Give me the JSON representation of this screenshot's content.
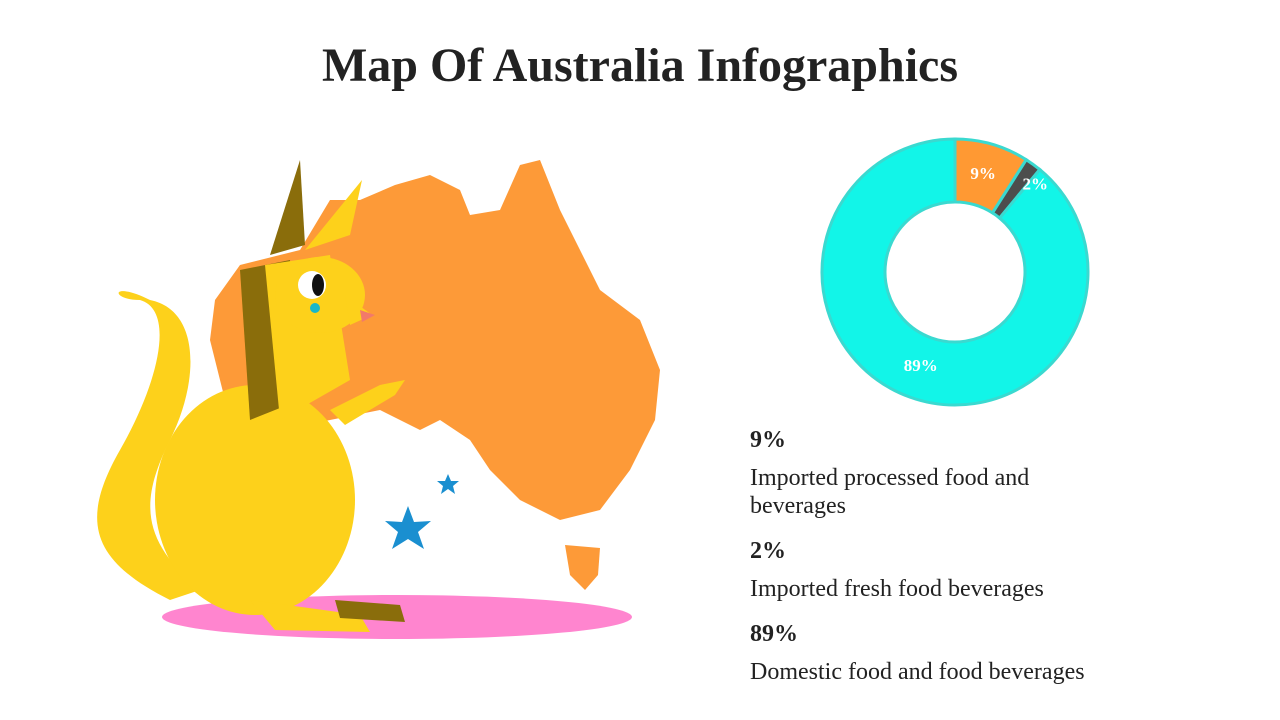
{
  "chart_data": {
    "type": "donut",
    "title": "Map Of Australia Infographics",
    "categories": [
      "Imported processed food and beverages",
      "Imported fresh food beverages",
      "Domestic food and food beverages"
    ],
    "values": [
      9,
      2,
      89
    ],
    "value_labels": [
      "9%",
      "2%",
      "89%"
    ],
    "colors": [
      "#ff9933",
      "#4d4d4d",
      "#12f5e8"
    ]
  }
}
